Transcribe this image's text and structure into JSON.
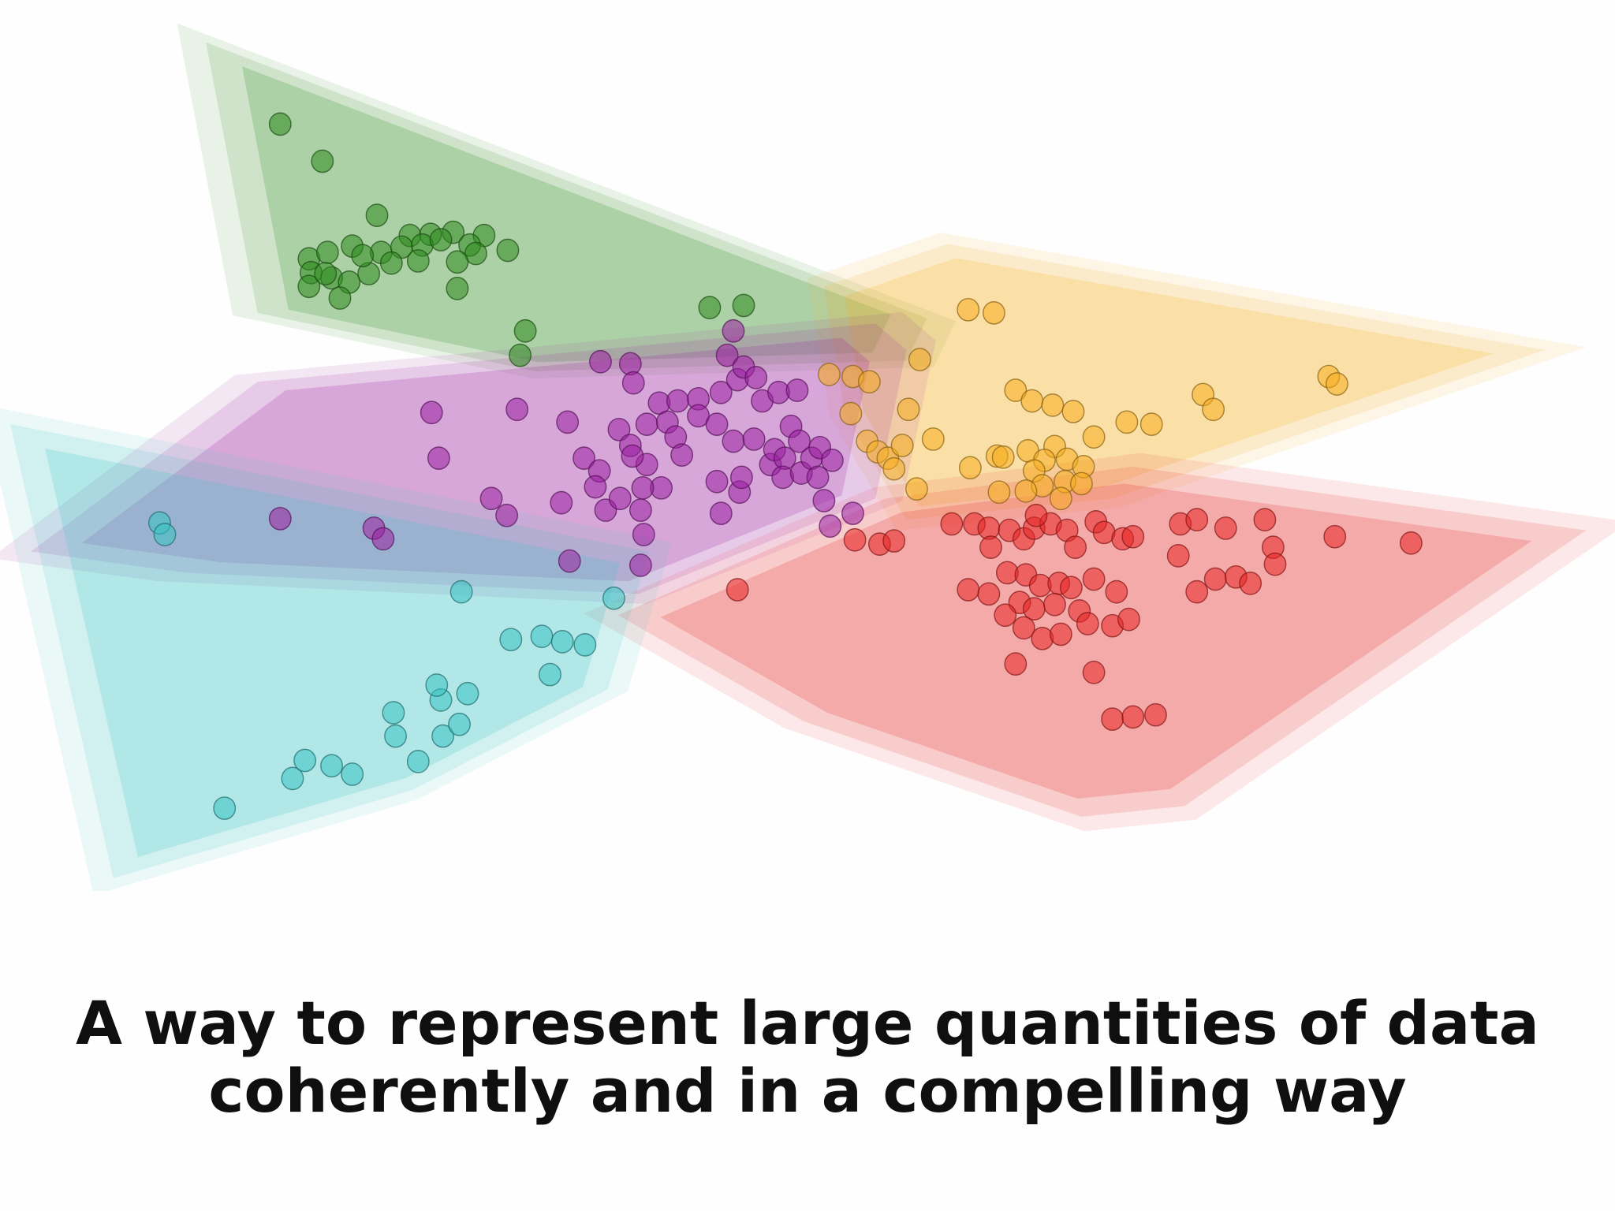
{
  "slide": {
    "caption_line1": "A way to represent large quantities of data",
    "caption_line2": "coherently and in a compelling way"
  },
  "chart_data": {
    "type": "scatter",
    "title": "",
    "xlabel": "",
    "ylabel": "",
    "axes_visible": false,
    "grid": false,
    "legend": "none",
    "xlim": [
      0,
      1568
    ],
    "ylim": [
      0,
      840
    ],
    "point_style": {
      "fill_opacity": 0.55,
      "edge": "dark outline"
    },
    "hull_style": {
      "layers": 3,
      "opacity": 0.15,
      "description": "soft translucent convex hull around each cluster"
    },
    "series": [
      {
        "color": "#2e8b1e",
        "hull": [
          [
            200,
            40
          ],
          [
            900,
            300
          ],
          [
            880,
            340
          ],
          [
            520,
            350
          ],
          [
            250,
            295
          ]
        ],
        "points": [
          [
            272,
            117
          ],
          [
            313,
            152
          ],
          [
            366,
            203
          ],
          [
            398,
            222
          ],
          [
            418,
            221
          ],
          [
            440,
            219
          ],
          [
            470,
            222
          ],
          [
            493,
            236
          ],
          [
            300,
            244
          ],
          [
            318,
            238
          ],
          [
            342,
            232
          ],
          [
            370,
            238
          ],
          [
            390,
            233
          ],
          [
            410,
            231
          ],
          [
            428,
            226
          ],
          [
            456,
            231
          ],
          [
            462,
            239
          ],
          [
            302,
            257
          ],
          [
            322,
            262
          ],
          [
            339,
            266
          ],
          [
            358,
            258
          ],
          [
            380,
            248
          ],
          [
            406,
            246
          ],
          [
            444,
            247
          ],
          [
            330,
            281
          ],
          [
            300,
            270
          ],
          [
            316,
            258
          ],
          [
            352,
            241
          ],
          [
            444,
            272
          ],
          [
            510,
            312
          ],
          [
            505,
            335
          ],
          [
            689,
            290
          ],
          [
            722,
            288
          ]
        ]
      },
      {
        "color": "#f5ad1e",
        "hull": [
          [
            800,
            270
          ],
          [
            920,
            230
          ],
          [
            1500,
            330
          ],
          [
            1080,
            470
          ],
          [
            880,
            490
          ],
          [
            820,
            390
          ]
        ],
        "points": [
          [
            940,
            292
          ],
          [
            965,
            295
          ],
          [
            1290,
            355
          ],
          [
            1298,
            362
          ],
          [
            893,
            339
          ],
          [
            805,
            353
          ],
          [
            828,
            355
          ],
          [
            844,
            360
          ],
          [
            826,
            390
          ],
          [
            882,
            386
          ],
          [
            986,
            368
          ],
          [
            1002,
            378
          ],
          [
            1022,
            382
          ],
          [
            1042,
            388
          ],
          [
            1094,
            398
          ],
          [
            1118,
            400
          ],
          [
            1168,
            372
          ],
          [
            1178,
            386
          ],
          [
            1062,
            412
          ],
          [
            906,
            414
          ],
          [
            942,
            441
          ],
          [
            968,
            430
          ],
          [
            842,
            416
          ],
          [
            852,
            426
          ],
          [
            862,
            432
          ],
          [
            876,
            420
          ],
          [
            868,
            442
          ],
          [
            890,
            461
          ],
          [
            970,
            464
          ],
          [
            974,
            431
          ],
          [
            998,
            425
          ],
          [
            1024,
            421
          ],
          [
            1014,
            434
          ],
          [
            1004,
            444
          ],
          [
            1036,
            433
          ],
          [
            1052,
            440
          ],
          [
            1034,
            454
          ],
          [
            1050,
            456
          ],
          [
            1030,
            470
          ],
          [
            1012,
            458
          ],
          [
            996,
            463
          ]
        ]
      },
      {
        "color": "#9b1fa0",
        "hull": [
          [
            30,
            520
          ],
          [
            250,
            360
          ],
          [
            850,
            305
          ],
          [
            880,
            330
          ],
          [
            850,
            470
          ],
          [
            620,
            560
          ],
          [
            180,
            540
          ]
        ],
        "points": [
          [
            272,
            489
          ],
          [
            363,
            498
          ],
          [
            372,
            508
          ],
          [
            419,
            389
          ],
          [
            426,
            432
          ],
          [
            477,
            470
          ],
          [
            492,
            486
          ],
          [
            502,
            386
          ],
          [
            551,
            398
          ],
          [
            545,
            474
          ],
          [
            553,
            529
          ],
          [
            583,
            341
          ],
          [
            612,
            343
          ],
          [
            615,
            361
          ],
          [
            567,
            432
          ],
          [
            582,
            444
          ],
          [
            578,
            459
          ],
          [
            588,
            481
          ],
          [
            602,
            470
          ],
          [
            601,
            405
          ],
          [
            612,
            420
          ],
          [
            628,
            400
          ],
          [
            628,
            438
          ],
          [
            622,
            481
          ],
          [
            625,
            504
          ],
          [
            622,
            533
          ],
          [
            642,
            460
          ],
          [
            640,
            380
          ],
          [
            658,
            378
          ],
          [
            678,
            376
          ],
          [
            648,
            398
          ],
          [
            656,
            412
          ],
          [
            678,
            392
          ],
          [
            662,
            429
          ],
          [
            696,
            400
          ],
          [
            700,
            370
          ],
          [
            716,
            358
          ],
          [
            706,
            335
          ],
          [
            712,
            312
          ],
          [
            722,
            346
          ],
          [
            734,
            356
          ],
          [
            740,
            378
          ],
          [
            756,
            370
          ],
          [
            774,
            368
          ],
          [
            696,
            454
          ],
          [
            700,
            484
          ],
          [
            718,
            464
          ],
          [
            712,
            416
          ],
          [
            732,
            414
          ],
          [
            748,
            438
          ],
          [
            752,
            424
          ],
          [
            762,
            432
          ],
          [
            768,
            402
          ],
          [
            776,
            416
          ],
          [
            760,
            450
          ],
          [
            778,
            446
          ],
          [
            788,
            432
          ],
          [
            796,
            422
          ],
          [
            808,
            434
          ],
          [
            794,
            450
          ],
          [
            800,
            472
          ],
          [
            806,
            496
          ],
          [
            828,
            484
          ],
          [
            720,
            450
          ],
          [
            614,
            430
          ],
          [
            624,
            460
          ]
        ]
      },
      {
        "color": "#e82525",
        "hull": [
          [
            600,
            580
          ],
          [
            860,
            470
          ],
          [
            1100,
            440
          ],
          [
            1540,
            500
          ],
          [
            1150,
            760
          ],
          [
            1050,
            770
          ],
          [
            780,
            680
          ]
        ],
        "points": [
          [
            830,
            509
          ],
          [
            854,
            513
          ],
          [
            868,
            510
          ],
          [
            716,
            556
          ],
          [
            924,
            494
          ],
          [
            946,
            494
          ],
          [
            960,
            498
          ],
          [
            962,
            516
          ],
          [
            980,
            500
          ],
          [
            994,
            508
          ],
          [
            1004,
            498
          ],
          [
            1020,
            494
          ],
          [
            1036,
            500
          ],
          [
            1044,
            516
          ],
          [
            1064,
            492
          ],
          [
            1072,
            502
          ],
          [
            1090,
            508
          ],
          [
            1100,
            506
          ],
          [
            940,
            556
          ],
          [
            960,
            560
          ],
          [
            978,
            540
          ],
          [
            996,
            542
          ],
          [
            1010,
            552
          ],
          [
            1028,
            550
          ],
          [
            1040,
            554
          ],
          [
            1062,
            546
          ],
          [
            1084,
            558
          ],
          [
            990,
            568
          ],
          [
            1004,
            574
          ],
          [
            1024,
            570
          ],
          [
            1048,
            576
          ],
          [
            1056,
            588
          ],
          [
            1080,
            590
          ],
          [
            1096,
            584
          ],
          [
            976,
            580
          ],
          [
            994,
            592
          ],
          [
            1012,
            602
          ],
          [
            1030,
            598
          ],
          [
            986,
            626
          ],
          [
            1062,
            634
          ],
          [
            1080,
            678
          ],
          [
            1100,
            676
          ],
          [
            1122,
            674
          ],
          [
            1146,
            494
          ],
          [
            1162,
            490
          ],
          [
            1190,
            498
          ],
          [
            1228,
            490
          ],
          [
            1236,
            516
          ],
          [
            1238,
            532
          ],
          [
            1144,
            524
          ],
          [
            1162,
            558
          ],
          [
            1180,
            546
          ],
          [
            1200,
            544
          ],
          [
            1214,
            550
          ],
          [
            1296,
            506
          ],
          [
            1370,
            512
          ],
          [
            1006,
            486
          ]
        ]
      },
      {
        "color": "#38c2c2",
        "hull": [
          [
            10,
            400
          ],
          [
            630,
            520
          ],
          [
            590,
            650
          ],
          [
            400,
            745
          ],
          [
            110,
            828
          ]
        ],
        "points": [
          [
            155,
            493
          ],
          [
            160,
            504
          ],
          [
            218,
            762
          ],
          [
            284,
            734
          ],
          [
            296,
            717
          ],
          [
            322,
            722
          ],
          [
            342,
            730
          ],
          [
            382,
            672
          ],
          [
            384,
            694
          ],
          [
            406,
            718
          ],
          [
            430,
            694
          ],
          [
            446,
            683
          ],
          [
            428,
            660
          ],
          [
            424,
            646
          ],
          [
            454,
            654
          ],
          [
            448,
            558
          ],
          [
            496,
            603
          ],
          [
            526,
            600
          ],
          [
            546,
            605
          ],
          [
            568,
            608
          ],
          [
            534,
            636
          ],
          [
            596,
            564
          ]
        ]
      }
    ]
  }
}
